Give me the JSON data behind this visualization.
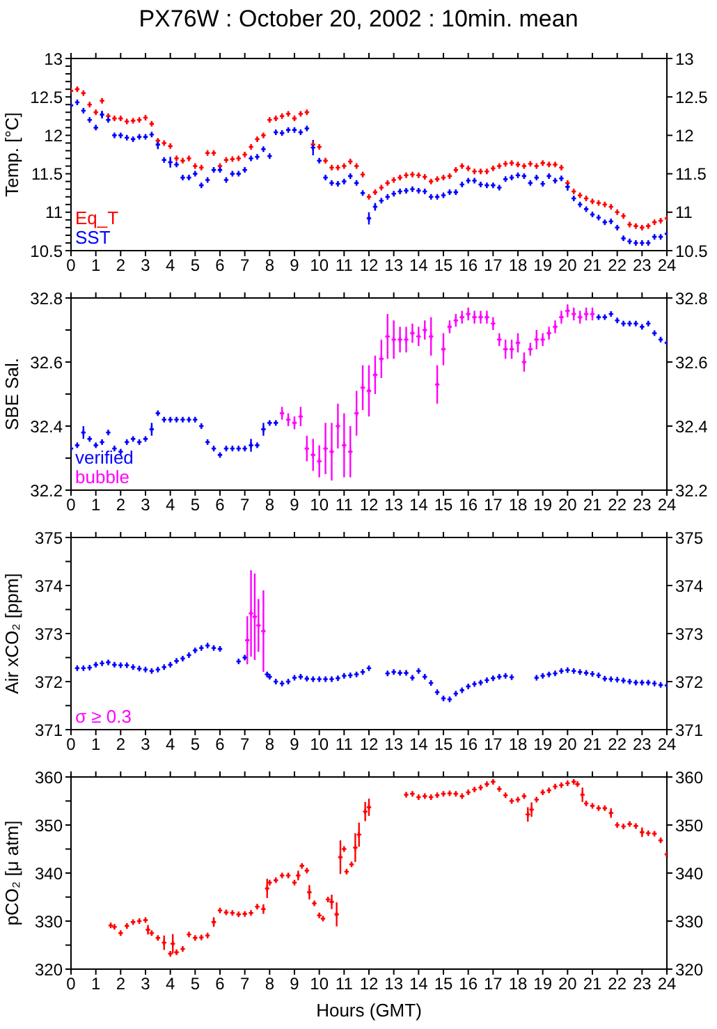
{
  "chart_data": [
    {
      "type": "scatter",
      "title": "PX76W : October 20, 2002 : 10min. mean",
      "ylabel": "Temp. [°C]",
      "marker": "cross",
      "legend": "bottom left",
      "xlim": [
        0,
        24
      ],
      "xticks": [
        0,
        1,
        2,
        3,
        4,
        5,
        6,
        7,
        8,
        9,
        10,
        11,
        12,
        13,
        14,
        15,
        16,
        17,
        18,
        19,
        20,
        21,
        22,
        23,
        24
      ],
      "ylim": [
        10.5,
        13
      ],
      "yticks": [
        10.5,
        {
          "value": 10.6,
          "label": null
        },
        {
          "value": 10.7,
          "label": null
        },
        {
          "value": 10.8,
          "label": null
        },
        {
          "value": 10.9,
          "label": null
        },
        11,
        {
          "value": 11.1,
          "label": null
        },
        {
          "value": 11.2,
          "label": null
        },
        {
          "value": 11.3,
          "label": null
        },
        {
          "value": 11.4,
          "label": null
        },
        11.5,
        {
          "value": 11.6,
          "label": null
        },
        {
          "value": 11.7,
          "label": null
        },
        {
          "value": 11.8,
          "label": null
        },
        {
          "value": 11.9,
          "label": null
        },
        12,
        {
          "value": 12.1,
          "label": null
        },
        {
          "value": 12.2,
          "label": null
        },
        {
          "value": 12.3,
          "label": null
        },
        {
          "value": 12.4,
          "label": null
        },
        12.5,
        {
          "value": 12.6,
          "label": null
        },
        {
          "value": 12.7,
          "label": null
        },
        {
          "value": 12.8,
          "label": null
        },
        {
          "value": 12.9,
          "label": null
        },
        13
      ],
      "y2lim": [
        10.5,
        13
      ],
      "y2ticks": [
        10.5,
        11,
        11.5,
        12,
        12.5,
        13
      ],
      "series": [
        {
          "name": "Eq_T",
          "color": "#ff0000",
          "x": [
            0,
            0.25,
            0.5,
            0.75,
            1,
            1.25,
            1.5,
            1.75,
            2,
            2.25,
            2.5,
            2.75,
            3,
            3.25,
            3.5,
            3.75,
            4,
            4.25,
            4.5,
            4.75,
            5,
            5.25,
            5.5,
            5.75,
            6,
            6.25,
            6.5,
            6.75,
            7,
            7.25,
            7.5,
            7.75,
            8,
            8.25,
            8.5,
            8.75,
            9,
            9.25,
            9.5,
            9.75,
            10,
            10.25,
            10.5,
            10.75,
            11,
            11.25,
            11.5,
            11.75,
            12,
            12.25,
            12.5,
            12.75,
            13,
            13.25,
            13.5,
            13.75,
            14,
            14.25,
            14.5,
            14.75,
            15,
            15.25,
            15.5,
            15.75,
            16,
            16.25,
            16.5,
            16.75,
            17,
            17.25,
            17.5,
            17.75,
            18,
            18.25,
            18.5,
            18.75,
            19,
            19.25,
            19.5,
            19.75,
            20,
            20.25,
            20.5,
            20.75,
            21,
            21.25,
            21.5,
            21.75,
            22,
            22.25,
            22.5,
            22.75,
            23,
            23.25,
            23.5,
            23.75,
            24
          ],
          "values": [
            12.58,
            12.6,
            12.55,
            12.4,
            12.3,
            12.45,
            12.25,
            12.22,
            12.22,
            12.18,
            12.19,
            12.2,
            12.23,
            12.15,
            11.93,
            11.9,
            11.86,
            11.7,
            11.67,
            11.7,
            11.6,
            11.58,
            11.77,
            11.77,
            11.6,
            11.68,
            11.69,
            11.7,
            11.75,
            11.85,
            11.95,
            12.0,
            12.2,
            12.22,
            12.25,
            12.28,
            12.22,
            12.28,
            12.3,
            11.88,
            11.85,
            11.67,
            11.58,
            11.58,
            11.6,
            11.66,
            11.6,
            11.49,
            11.2,
            11.26,
            11.32,
            11.38,
            11.42,
            11.45,
            11.48,
            11.49,
            11.48,
            11.46,
            11.4,
            11.43,
            11.45,
            11.47,
            11.55,
            11.6,
            11.57,
            11.53,
            11.53,
            11.53,
            11.57,
            11.6,
            11.63,
            11.64,
            11.62,
            11.6,
            11.63,
            11.6,
            11.64,
            11.62,
            11.62,
            11.58,
            11.38,
            11.27,
            11.22,
            11.18,
            11.14,
            11.12,
            11.1,
            11.07,
            11.0,
            10.95,
            10.84,
            10.82,
            10.8,
            10.82,
            10.87,
            10.89,
            10.92
          ]
        },
        {
          "name": "SST",
          "color": "#0000ff",
          "x": [
            0,
            0.25,
            0.5,
            0.75,
            1,
            1.25,
            1.5,
            1.75,
            2,
            2.25,
            2.5,
            2.75,
            3,
            3.25,
            3.5,
            3.75,
            4,
            4.25,
            4.5,
            4.75,
            5,
            5.25,
            5.5,
            5.75,
            6,
            6.25,
            6.5,
            6.75,
            7,
            7.25,
            7.5,
            7.75,
            8,
            8.25,
            8.5,
            8.75,
            9,
            9.25,
            9.5,
            9.75,
            10,
            10.25,
            10.5,
            10.75,
            11,
            11.25,
            11.5,
            11.75,
            12,
            12.25,
            12.5,
            12.75,
            13,
            13.25,
            13.5,
            13.75,
            14,
            14.25,
            14.5,
            14.75,
            15,
            15.25,
            15.5,
            15.75,
            16,
            16.25,
            16.5,
            16.75,
            17,
            17.25,
            17.5,
            17.75,
            18,
            18.25,
            18.5,
            18.75,
            19,
            19.25,
            19.5,
            19.75,
            20,
            20.25,
            20.5,
            20.75,
            21,
            21.25,
            21.5,
            21.75,
            22,
            22.25,
            22.5,
            22.75,
            23,
            23.25,
            23.5,
            23.75,
            24
          ],
          "values": [
            12.39,
            12.43,
            12.32,
            12.2,
            12.1,
            12.27,
            12.2,
            12.0,
            12.0,
            11.97,
            11.95,
            11.98,
            11.98,
            12.01,
            11.88,
            11.68,
            11.65,
            11.62,
            11.45,
            11.45,
            11.5,
            11.35,
            11.42,
            11.55,
            11.55,
            11.42,
            11.5,
            11.5,
            11.55,
            11.7,
            11.72,
            11.82,
            11.73,
            12.04,
            12.03,
            12.07,
            12.07,
            12.04,
            12.09,
            11.84,
            11.67,
            11.45,
            11.38,
            11.37,
            11.4,
            11.47,
            11.38,
            11.25,
            10.92,
            11.07,
            11.15,
            11.2,
            11.24,
            11.27,
            11.28,
            11.3,
            11.28,
            11.27,
            11.2,
            11.2,
            11.22,
            11.26,
            11.26,
            11.36,
            11.41,
            11.41,
            11.36,
            11.35,
            11.35,
            11.32,
            11.43,
            11.45,
            11.48,
            11.47,
            11.38,
            11.45,
            11.37,
            11.47,
            11.41,
            11.44,
            11.33,
            11.18,
            11.1,
            11.04,
            10.97,
            10.93,
            10.87,
            10.88,
            10.8,
            10.66,
            10.62,
            10.6,
            10.6,
            10.6,
            10.68,
            10.68,
            10.72
          ],
          "errors": [
            null,
            null,
            null,
            null,
            null,
            0.05,
            null,
            null,
            null,
            null,
            null,
            null,
            null,
            null,
            0.06,
            null,
            0.07,
            null,
            null,
            null,
            null,
            null,
            null,
            null,
            null,
            null,
            null,
            null,
            null,
            null,
            null,
            null,
            null,
            null,
            null,
            null,
            null,
            null,
            null,
            0.1,
            null,
            null,
            null,
            null,
            null,
            null,
            null,
            null,
            0.08,
            0.05,
            null,
            null,
            null,
            null,
            null,
            null,
            null,
            null,
            null,
            null,
            null,
            null,
            null,
            null,
            null,
            null,
            null,
            null,
            null,
            null,
            null,
            null,
            null,
            null,
            null,
            null,
            null,
            null,
            null,
            null,
            0.05,
            null,
            null,
            null,
            null,
            null,
            null,
            null,
            null,
            null,
            null,
            null,
            null,
            null,
            null,
            null,
            null
          ]
        }
      ]
    },
    {
      "type": "scatter",
      "ylabel": "SBE Sal.",
      "marker": "cross",
      "legend": "bottom left",
      "xlim": [
        0,
        24
      ],
      "xticks": [
        0,
        1,
        2,
        3,
        4,
        5,
        6,
        7,
        8,
        9,
        10,
        11,
        12,
        13,
        14,
        15,
        16,
        17,
        18,
        19,
        20,
        21,
        22,
        23,
        24
      ],
      "ylim": [
        32.2,
        32.8
      ],
      "yticks": [
        32.2,
        {
          "value": 32.3,
          "label": null
        },
        32.4,
        {
          "value": 32.5,
          "label": null
        },
        32.6,
        {
          "value": 32.7,
          "label": null
        },
        32.8
      ],
      "y2lim": [
        32.2,
        32.8
      ],
      "y2ticks": [
        32.2,
        32.4,
        32.6,
        32.8
      ],
      "series": [
        {
          "name": "verified",
          "color": "#0000ff",
          "x": [
            0,
            0.25,
            0.5,
            0.75,
            1,
            1.25,
            1.5,
            1.75,
            2,
            2.25,
            2.5,
            2.75,
            3,
            3.25,
            3.5,
            3.75,
            4,
            4.25,
            4.5,
            4.75,
            5,
            5.25,
            5.5,
            5.75,
            6,
            6.25,
            6.5,
            6.75,
            7,
            7.25,
            7.5,
            7.75,
            8,
            8.25,
            21.25,
            21.5,
            21.75,
            22,
            22.25,
            22.5,
            22.75,
            23,
            23.25,
            23.5,
            23.75,
            24
          ],
          "values": [
            32.33,
            32.34,
            32.38,
            32.36,
            32.34,
            32.35,
            32.38,
            32.33,
            32.32,
            32.35,
            32.36,
            32.35,
            32.36,
            32.39,
            32.44,
            32.42,
            32.42,
            32.42,
            32.42,
            32.42,
            32.42,
            32.4,
            32.35,
            32.33,
            32.31,
            32.33,
            32.33,
            32.33,
            32.33,
            32.34,
            32.34,
            32.39,
            32.41,
            32.41,
            32.74,
            32.74,
            32.75,
            32.73,
            32.72,
            32.72,
            32.72,
            32.71,
            32.72,
            32.69,
            32.67,
            32.66
          ],
          "errors": [
            null,
            null,
            0.02,
            null,
            null,
            null,
            null,
            null,
            null,
            null,
            null,
            null,
            null,
            0.02,
            null,
            null,
            null,
            null,
            null,
            null,
            null,
            null,
            null,
            null,
            null,
            null,
            null,
            null,
            null,
            0.02,
            null,
            0.02,
            null,
            null,
            null,
            null,
            null,
            null,
            null,
            null,
            null,
            null,
            null,
            null,
            null,
            null
          ]
        },
        {
          "name": "bubble",
          "color": "#ff00ff",
          "x": [
            8.5,
            8.75,
            9,
            9.25,
            9.5,
            9.75,
            10,
            10.25,
            10.5,
            10.75,
            11,
            11.25,
            11.5,
            11.75,
            12,
            12.25,
            12.5,
            12.75,
            13,
            13.25,
            13.5,
            13.75,
            14,
            14.25,
            14.5,
            14.75,
            15,
            15.25,
            15.5,
            15.75,
            16,
            16.25,
            16.5,
            16.75,
            17,
            17.25,
            17.5,
            17.75,
            18,
            18.25,
            18.5,
            18.75,
            19,
            19.25,
            19.5,
            19.75,
            20,
            20.25,
            20.5,
            20.75,
            21
          ],
          "values": [
            32.44,
            32.42,
            32.41,
            32.43,
            32.33,
            32.31,
            32.29,
            32.33,
            32.32,
            32.4,
            32.34,
            32.32,
            32.44,
            32.52,
            32.51,
            32.56,
            32.61,
            32.68,
            32.67,
            32.67,
            32.67,
            32.69,
            32.68,
            32.7,
            32.68,
            32.53,
            32.64,
            32.71,
            32.73,
            32.74,
            32.75,
            32.74,
            32.74,
            32.74,
            32.72,
            32.67,
            32.64,
            32.64,
            32.66,
            32.6,
            32.64,
            32.67,
            32.67,
            32.69,
            32.71,
            32.74,
            32.76,
            32.75,
            32.74,
            32.75,
            32.75
          ],
          "errors": [
            0.02,
            0.02,
            0.02,
            0.03,
            0.04,
            0.05,
            0.05,
            0.08,
            0.09,
            0.07,
            0.1,
            0.08,
            0.07,
            0.07,
            0.08,
            0.06,
            0.06,
            0.07,
            0.06,
            0.04,
            0.04,
            0.03,
            0.03,
            0.03,
            0.06,
            0.06,
            0.05,
            0.02,
            0.02,
            0.02,
            0.02,
            0.02,
            0.02,
            0.02,
            0.02,
            0.02,
            0.03,
            0.03,
            0.03,
            0.03,
            0.02,
            0.03,
            0.02,
            0.02,
            0.02,
            0.02,
            0.02,
            0.02,
            0.02,
            0.02,
            0.02
          ]
        }
      ]
    },
    {
      "type": "scatter",
      "ylabel": "Air xCO₂ [ppm]",
      "marker": "cross",
      "legend": "bottom left",
      "xlim": [
        0,
        24
      ],
      "xticks": [
        0,
        1,
        2,
        3,
        4,
        5,
        6,
        7,
        8,
        9,
        10,
        11,
        12,
        13,
        14,
        15,
        16,
        17,
        18,
        19,
        20,
        21,
        22,
        23,
        24
      ],
      "ylim": [
        371,
        375
      ],
      "yticks": [
        371,
        {
          "value": 371.5,
          "label": null
        },
        372,
        {
          "value": 372.5,
          "label": null
        },
        373,
        {
          "value": 373.5,
          "label": null
        },
        374,
        {
          "value": 374.5,
          "label": null
        },
        375
      ],
      "y2lim": [
        371,
        375
      ],
      "y2ticks": [
        371,
        372,
        373,
        374,
        375
      ],
      "series": [
        {
          "color": "#0000ff",
          "x": [
            0.25,
            0.5,
            0.75,
            1,
            1.25,
            1.5,
            1.75,
            2,
            2.25,
            2.5,
            2.75,
            3,
            3.25,
            3.5,
            3.75,
            4,
            4.25,
            4.5,
            4.75,
            5,
            5.25,
            5.5,
            5.75,
            6,
            6.75,
            7,
            7.9,
            8,
            8.25,
            8.5,
            8.75,
            9,
            9.25,
            9.5,
            9.75,
            10,
            10.25,
            10.5,
            10.75,
            11,
            11.25,
            11.5,
            11.75,
            12,
            12.75,
            13,
            13.25,
            13.5,
            13.75,
            14,
            14.25,
            14.5,
            14.75,
            15,
            15.25,
            15.5,
            15.75,
            16,
            16.25,
            16.5,
            16.75,
            17,
            17.25,
            17.5,
            17.75,
            18.75,
            19,
            19.25,
            19.5,
            19.75,
            20,
            20.25,
            20.5,
            20.75,
            21,
            21.25,
            21.5,
            21.75,
            22,
            22.25,
            22.5,
            22.75,
            23,
            23.25,
            23.5,
            23.75,
            24
          ],
          "values": [
            372.28,
            372.28,
            372.29,
            372.35,
            372.38,
            372.4,
            372.35,
            372.34,
            372.34,
            372.3,
            372.27,
            372.25,
            372.22,
            372.25,
            372.3,
            372.35,
            372.43,
            372.48,
            372.55,
            372.65,
            372.7,
            372.75,
            372.7,
            372.68,
            372.42,
            372.5,
            372.15,
            372.1,
            372.0,
            371.96,
            372.0,
            372.08,
            372.1,
            372.06,
            372.05,
            372.05,
            372.05,
            372.05,
            372.07,
            372.12,
            372.13,
            372.15,
            372.2,
            372.28,
            372.17,
            372.2,
            372.18,
            372.18,
            372.08,
            372.22,
            372.1,
            371.97,
            371.78,
            371.65,
            371.63,
            371.75,
            371.82,
            371.9,
            371.95,
            371.98,
            372.03,
            372.07,
            372.1,
            372.12,
            372.09,
            372.08,
            372.12,
            372.15,
            372.17,
            372.22,
            372.24,
            372.22,
            372.2,
            372.18,
            372.16,
            372.13,
            372.06,
            372.05,
            372.04,
            372.02,
            372.0,
            371.98,
            371.98,
            371.98,
            371.96,
            371.93,
            371.92
          ]
        },
        {
          "name": "σ ≥ 0.3",
          "color": "#ff00ff",
          "x": [
            7.1,
            7.25,
            7.4,
            7.55,
            7.75
          ],
          "values": [
            372.86,
            373.42,
            373.35,
            373.17,
            373.05
          ],
          "errors": [
            0.5,
            0.9,
            0.9,
            0.55,
            0.85
          ]
        }
      ]
    },
    {
      "type": "scatter",
      "ylabel": "pCO₂ [μ atm]",
      "xlabel": "Hours (GMT)",
      "marker": "cross",
      "xlim": [
        0,
        24
      ],
      "xticks": [
        0,
        1,
        2,
        3,
        4,
        5,
        6,
        7,
        8,
        9,
        10,
        11,
        12,
        13,
        14,
        15,
        16,
        17,
        18,
        19,
        20,
        21,
        22,
        23,
        24
      ],
      "ylim": [
        320,
        360
      ],
      "yticks": [
        320,
        {
          "value": 325,
          "label": null
        },
        330,
        {
          "value": 335,
          "label": null
        },
        340,
        {
          "value": 345,
          "label": null
        },
        350,
        {
          "value": 355,
          "label": null
        },
        360
      ],
      "y2lim": [
        320,
        360
      ],
      "y2ticks": [
        320,
        330,
        340,
        350,
        360
      ],
      "series": [
        {
          "color": "#ff0000",
          "x": [
            1.6,
            1.75,
            2,
            2.25,
            2.5,
            2.75,
            3,
            3.1,
            3.25,
            3.5,
            3.75,
            4,
            4.1,
            4.25,
            4.5,
            4.75,
            5,
            5.25,
            5.5,
            5.75,
            6,
            6.25,
            6.5,
            6.75,
            7,
            7.25,
            7.5,
            7.75,
            7.9,
            8,
            8.25,
            8.5,
            8.75,
            9,
            9.15,
            9.3,
            9.5,
            9.6,
            9.8,
            10,
            10.15,
            10.35,
            10.5,
            10.7,
            10.85,
            11,
            11.1,
            11.3,
            11.45,
            11.6,
            11.85,
            12,
            13.5,
            13.75,
            14,
            14.25,
            14.5,
            14.75,
            15,
            15.25,
            15.5,
            15.75,
            16,
            16.25,
            16.5,
            16.75,
            17,
            17.25,
            17.5,
            17.75,
            18,
            18.25,
            18.4,
            18.55,
            18.75,
            19,
            19.25,
            19.5,
            19.75,
            20,
            20.25,
            20.4,
            20.6,
            20.75,
            21,
            21.25,
            21.5,
            21.75,
            22,
            22.25,
            22.5,
            22.75,
            23,
            23.25,
            23.5,
            23.75,
            24
          ],
          "values": [
            329.1,
            328.8,
            327.5,
            329,
            329.8,
            330,
            330.2,
            328.2,
            327.5,
            326.5,
            325.5,
            323.2,
            325.3,
            323.5,
            324.2,
            327.2,
            326.5,
            326.6,
            327,
            329.8,
            332.2,
            331.8,
            331.7,
            331.4,
            331.5,
            331.7,
            333,
            332.5,
            336.8,
            338,
            338.5,
            339.5,
            339.5,
            338,
            339.5,
            341.5,
            340.5,
            336,
            333.7,
            331.2,
            330.5,
            334.5,
            334,
            331.4,
            343.3,
            345,
            340.3,
            341.8,
            345.3,
            348,
            352.8,
            353.7,
            356.3,
            356.5,
            355.8,
            356,
            355.8,
            356.2,
            356.5,
            356.6,
            356.5,
            356,
            356.8,
            357.4,
            357.8,
            358.5,
            359,
            357.5,
            356.2,
            355,
            355.3,
            356,
            352.2,
            353.2,
            355.3,
            356.8,
            357.2,
            358,
            358.3,
            358.7,
            359,
            358.5,
            356.3,
            354.5,
            354,
            353.5,
            353.5,
            352.5,
            350,
            349.7,
            350.2,
            349.8,
            348.5,
            348.3,
            348.2,
            346.8,
            343.9
          ],
          "errors": [
            null,
            null,
            null,
            null,
            null,
            null,
            null,
            1,
            null,
            null,
            1.5,
            null,
            2,
            null,
            null,
            null,
            null,
            null,
            null,
            1,
            null,
            null,
            null,
            null,
            null,
            null,
            null,
            1,
            2,
            null,
            null,
            null,
            null,
            null,
            1,
            null,
            null,
            1.5,
            null,
            null,
            null,
            null,
            1.5,
            2.5,
            3.5,
            null,
            null,
            null,
            3,
            2.5,
            2,
            1.8,
            null,
            null,
            null,
            null,
            null,
            null,
            null,
            null,
            null,
            null,
            null,
            null,
            null,
            null,
            null,
            null,
            null,
            null,
            null,
            null,
            1.5,
            1.5,
            null,
            null,
            null,
            null,
            null,
            null,
            null,
            null,
            1.5,
            null,
            null,
            null,
            null,
            1,
            null,
            null,
            null,
            null,
            1,
            null,
            null,
            null,
            0.8
          ]
        }
      ]
    }
  ]
}
